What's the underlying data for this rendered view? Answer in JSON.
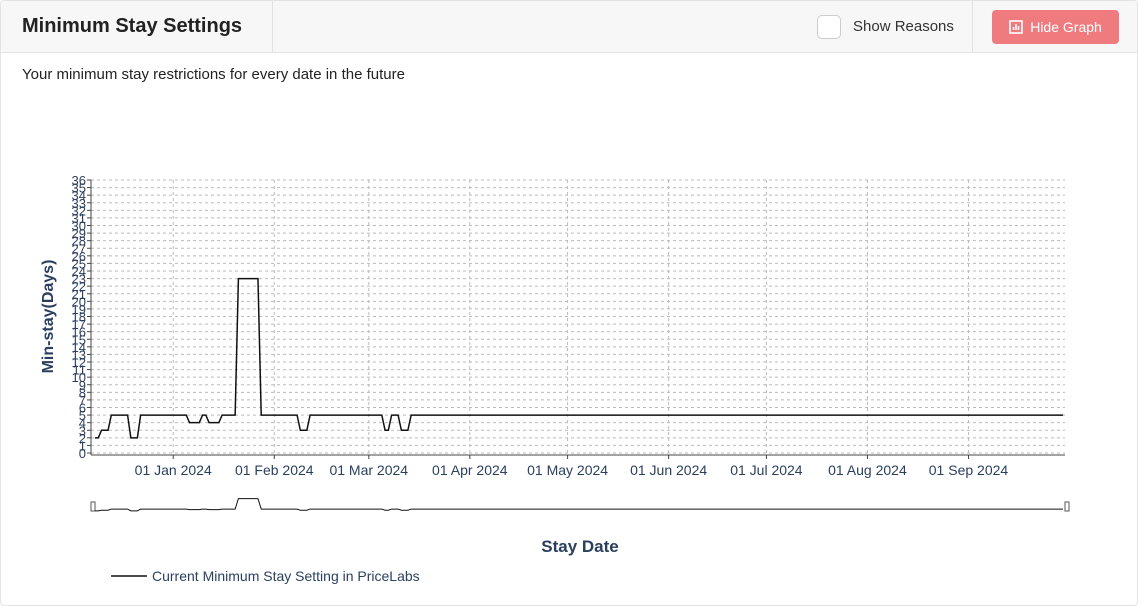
{
  "header": {
    "title": "Minimum Stay Settings",
    "checkbox_label": "Show Reasons",
    "button": "Hide Graph"
  },
  "description": "Your minimum stay restrictions for every date in the future",
  "chart_data": {
    "type": "line",
    "y_label": "Min-stay(Days)",
    "x_label": "Stay Date",
    "x": [
      "2023-12-08",
      "2023-12-09",
      "2023-12-10",
      "2023-12-12",
      "2023-12-13",
      "2023-12-18",
      "2023-12-19",
      "2023-12-21",
      "2023-12-22",
      "2024-01-05",
      "2024-01-06",
      "2024-01-09",
      "2024-01-10",
      "2024-01-11",
      "2024-01-12",
      "2024-01-15",
      "2024-01-16",
      "2024-01-20",
      "2024-01-21",
      "2024-01-27",
      "2024-01-28",
      "2024-02-08",
      "2024-02-09",
      "2024-02-11",
      "2024-02-12",
      "2024-03-05",
      "2024-03-06",
      "2024-03-07",
      "2024-03-08",
      "2024-03-10",
      "2024-03-11",
      "2024-03-13",
      "2024-03-14",
      "2024-09-30"
    ],
    "series": [
      {
        "name": "Current Minimum Stay Setting in PriceLabs",
        "color": "#111111",
        "values": [
          2,
          2,
          3,
          3,
          5,
          5,
          2,
          2,
          5,
          5,
          4,
          4,
          5,
          5,
          4,
          4,
          5,
          5,
          23,
          23,
          5,
          5,
          3,
          3,
          5,
          5,
          3,
          3,
          5,
          5,
          3,
          3,
          5,
          5
        ]
      }
    ],
    "xlim": [
      "2023-12-08",
      "2024-09-30"
    ],
    "xticks": [
      {
        "value": "2024-01-01",
        "label": "01 Jan 2024"
      },
      {
        "value": "2024-02-01",
        "label": "01 Feb 2024"
      },
      {
        "value": "2024-03-01",
        "label": "01 Mar 2024"
      },
      {
        "value": "2024-04-01",
        "label": "01 Apr 2024"
      },
      {
        "value": "2024-05-01",
        "label": "01 May 2024"
      },
      {
        "value": "2024-06-01",
        "label": "01 Jun 2024"
      },
      {
        "value": "2024-07-01",
        "label": "01 Jul 2024"
      },
      {
        "value": "2024-08-01",
        "label": "01 Aug 2024"
      },
      {
        "value": "2024-09-01",
        "label": "01 Sep 2024"
      }
    ],
    "ylim": [
      0,
      36
    ],
    "yticks": [
      0,
      1,
      2,
      3,
      4,
      5,
      6,
      7,
      8,
      9,
      10,
      11,
      12,
      13,
      14,
      15,
      16,
      17,
      18,
      19,
      20,
      21,
      22,
      23,
      24,
      25,
      26,
      27,
      28,
      29,
      30,
      31,
      32,
      33,
      34,
      35,
      36
    ],
    "grid": true,
    "range_slider": true
  }
}
